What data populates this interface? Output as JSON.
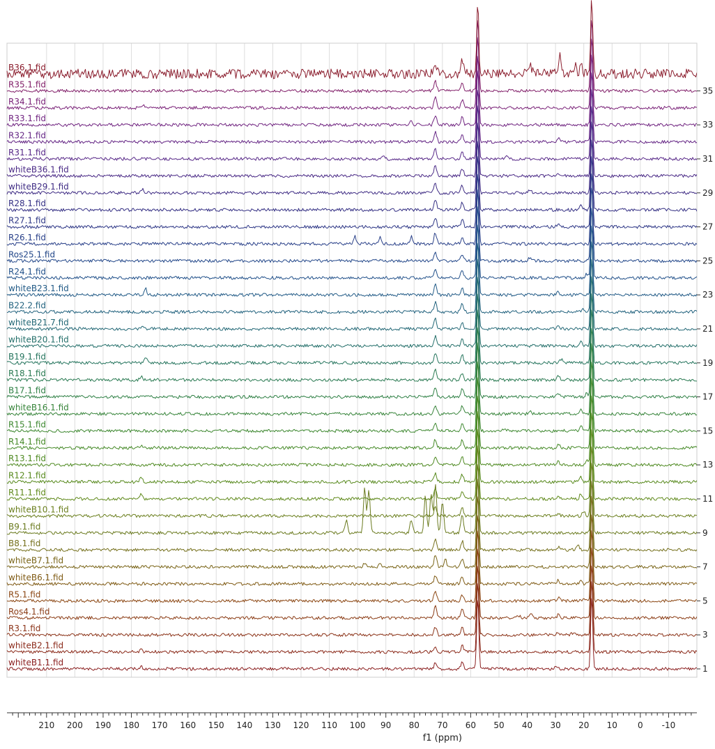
{
  "chart_data": {
    "type": "line",
    "subtype": "stacked-nmr-spectra",
    "title": "",
    "xlabel": "f1 (ppm)",
    "ylabel": "",
    "xlim": [
      224,
      -20
    ],
    "x_reversed": true,
    "x_ticks": [
      210,
      200,
      190,
      180,
      170,
      160,
      150,
      140,
      130,
      120,
      110,
      100,
      90,
      80,
      70,
      60,
      50,
      40,
      30,
      20,
      10,
      0,
      -10
    ],
    "x_tick_labels": [
      "210",
      "200",
      "190",
      "180",
      "170",
      "160",
      "150",
      "140",
      "130",
      "120",
      "110",
      "100",
      "90",
      "80",
      "70",
      "60",
      "50",
      "40",
      "30",
      "20",
      "10",
      "0",
      "-10"
    ],
    "y_ticks": [
      1,
      3,
      5,
      7,
      9,
      11,
      13,
      15,
      17,
      19,
      21,
      23,
      25,
      27,
      29,
      31,
      33,
      35
    ],
    "y_tick_labels": [
      "1",
      "3",
      "5",
      "7",
      "9",
      "11",
      "13",
      "15",
      "17",
      "19",
      "21",
      "23",
      "25",
      "27",
      "29",
      "31",
      "33",
      "35"
    ],
    "ylim": [
      0,
      36
    ],
    "grid": true,
    "series": [
      {
        "index": 1,
        "name": "whiteB1.1.fid",
        "color": "#8b2020",
        "peaks": [
          [
            72.5,
            0.9
          ],
          [
            63,
            1.2
          ],
          [
            57.5,
            12
          ],
          [
            17.2,
            12
          ],
          [
            176.5,
            0.3
          ],
          [
            30,
            0.3
          ]
        ]
      },
      {
        "index": 2,
        "name": "whiteB2.1.fid",
        "color": "#8b2a1a",
        "peaks": [
          [
            72.5,
            1.0
          ],
          [
            63,
            1.0
          ],
          [
            57.5,
            12
          ],
          [
            17.2,
            12
          ],
          [
            176.5,
            0.4
          ]
        ]
      },
      {
        "index": 3,
        "name": "R3.1.fid",
        "color": "#8b3318",
        "peaks": [
          [
            72.5,
            1.2
          ],
          [
            63,
            1.2
          ],
          [
            57.5,
            12
          ],
          [
            17.2,
            12
          ],
          [
            29,
            0.4
          ],
          [
            24,
            0.3
          ]
        ]
      },
      {
        "index": 4,
        "name": "Ros4.1.fid",
        "color": "#8b3c15",
        "peaks": [
          [
            72.5,
            2.0
          ],
          [
            63,
            1.5
          ],
          [
            57.5,
            12
          ],
          [
            17.2,
            12
          ],
          [
            38.8,
            0.6
          ],
          [
            43,
            0.4
          ],
          [
            29,
            0.5
          ]
        ]
      },
      {
        "index": 5,
        "name": "R5.1.fid",
        "color": "#8b4612",
        "peaks": [
          [
            72.5,
            1.6
          ],
          [
            63,
            1.0
          ],
          [
            57.5,
            12
          ],
          [
            17.2,
            12
          ],
          [
            29,
            0.6
          ],
          [
            20,
            0.5
          ]
        ]
      },
      {
        "index": 6,
        "name": "whiteB6.1.fid",
        "color": "#7f5a14",
        "peaks": [
          [
            72.5,
            1.4
          ],
          [
            63,
            1.2
          ],
          [
            57.5,
            12
          ],
          [
            17.2,
            12
          ],
          [
            29,
            0.6
          ],
          [
            21,
            0.5
          ]
        ]
      },
      {
        "index": 7,
        "name": "whiteB7.1.fid",
        "color": "#7a6518",
        "peaks": [
          [
            72.5,
            2.0
          ],
          [
            69,
            1.2
          ],
          [
            63,
            1.2
          ],
          [
            57.5,
            12
          ],
          [
            17.2,
            12
          ],
          [
            97.5,
            0.5
          ],
          [
            92,
            0.4
          ]
        ]
      },
      {
        "index": 8,
        "name": "B8.1.fid",
        "color": "#75701c",
        "peaks": [
          [
            72.5,
            1.8
          ],
          [
            63,
            1.4
          ],
          [
            57.5,
            12
          ],
          [
            17.2,
            12
          ],
          [
            29,
            0.5
          ],
          [
            22,
            0.6
          ]
        ]
      },
      {
        "index": 9,
        "name": "B9.1.fid",
        "color": "#6a7a1e",
        "peaks": [
          [
            97.5,
            7
          ],
          [
            96,
            7
          ],
          [
            104,
            2
          ],
          [
            81,
            2
          ],
          [
            76,
            6
          ],
          [
            74,
            6
          ],
          [
            72.5,
            8
          ],
          [
            70,
            5
          ],
          [
            63,
            3
          ],
          [
            57.5,
            12
          ],
          [
            17.2,
            12
          ]
        ]
      },
      {
        "index": 10,
        "name": "whiteB10.1.fid",
        "color": "#6b7f1e",
        "peaks": [
          [
            72.5,
            1.6
          ],
          [
            63,
            1.2
          ],
          [
            57.5,
            12
          ],
          [
            17.2,
            12
          ],
          [
            20,
            0.8
          ],
          [
            29,
            0.5
          ]
        ]
      },
      {
        "index": 11,
        "name": "R11.1.fid",
        "color": "#608a1c",
        "peaks": [
          [
            176.5,
            0.7
          ],
          [
            72.5,
            1.5
          ],
          [
            63,
            1.2
          ],
          [
            57.5,
            12
          ],
          [
            17.2,
            12
          ],
          [
            21,
            0.8
          ],
          [
            29,
            0.6
          ]
        ]
      },
      {
        "index": 12,
        "name": "R12.1.fid",
        "color": "#588a1e",
        "peaks": [
          [
            176.5,
            0.8
          ],
          [
            72.5,
            1.5
          ],
          [
            63,
            1.2
          ],
          [
            57.5,
            12
          ],
          [
            17.2,
            12
          ],
          [
            21,
            0.8
          ]
        ]
      },
      {
        "index": 13,
        "name": "R13.1.fid",
        "color": "#4f8a22",
        "peaks": [
          [
            72.5,
            1.4
          ],
          [
            63,
            1.2
          ],
          [
            57.5,
            12
          ],
          [
            17.2,
            12
          ],
          [
            29,
            0.6
          ],
          [
            19,
            0.7
          ]
        ]
      },
      {
        "index": 14,
        "name": "R14.1.fid",
        "color": "#468a28",
        "peaks": [
          [
            176.5,
            0.5
          ],
          [
            72.5,
            1.4
          ],
          [
            63,
            1.2
          ],
          [
            57.5,
            12
          ],
          [
            17.2,
            12
          ],
          [
            29,
            0.6
          ]
        ]
      },
      {
        "index": 15,
        "name": "R15.1.fid",
        "color": "#3e8830",
        "peaks": [
          [
            72.5,
            1.4
          ],
          [
            63,
            1.2
          ],
          [
            57.5,
            12
          ],
          [
            17.2,
            12
          ],
          [
            21,
            0.7
          ],
          [
            48,
            0.4
          ]
        ]
      },
      {
        "index": 16,
        "name": "whiteB16.1.fid",
        "color": "#37843a",
        "peaks": [
          [
            72.5,
            1.5
          ],
          [
            63,
            1.2
          ],
          [
            57.5,
            12
          ],
          [
            17.2,
            12
          ],
          [
            39,
            0.4
          ],
          [
            21,
            0.6
          ]
        ]
      },
      {
        "index": 17,
        "name": "B17.1.fid",
        "color": "#2f8045",
        "peaks": [
          [
            72.5,
            1.6
          ],
          [
            63,
            1.3
          ],
          [
            57.5,
            12
          ],
          [
            17.2,
            12
          ],
          [
            29,
            0.6
          ],
          [
            19,
            0.6
          ]
        ]
      },
      {
        "index": 18,
        "name": "R18.1.fid",
        "color": "#2a7a52",
        "peaks": [
          [
            176.5,
            0.6
          ],
          [
            72.5,
            1.6
          ],
          [
            63,
            1.2
          ],
          [
            57.5,
            12
          ],
          [
            17.2,
            12
          ],
          [
            29,
            0.8
          ]
        ]
      },
      {
        "index": 19,
        "name": "B19.1.fid",
        "color": "#26755e",
        "peaks": [
          [
            175,
            0.9
          ],
          [
            72.5,
            1.6
          ],
          [
            63,
            1.2
          ],
          [
            57.5,
            12
          ],
          [
            17.2,
            12
          ],
          [
            28,
            0.6
          ]
        ]
      },
      {
        "index": 20,
        "name": "whiteB20.1.fid",
        "color": "#246f6a",
        "peaks": [
          [
            72.5,
            1.6
          ],
          [
            63,
            1.2
          ],
          [
            57.5,
            12
          ],
          [
            17.2,
            12
          ],
          [
            21,
            0.6
          ]
        ]
      },
      {
        "index": 21,
        "name": "whiteB21.7.fid",
        "color": "#236876",
        "peaks": [
          [
            176,
            0.6
          ],
          [
            72.5,
            1.6
          ],
          [
            63,
            1.2
          ],
          [
            57.5,
            12
          ],
          [
            17.2,
            12
          ],
          [
            29,
            0.5
          ]
        ]
      },
      {
        "index": 22,
        "name": "B22.2.fid",
        "color": "#22627e",
        "peaks": [
          [
            72.5,
            1.6
          ],
          [
            63,
            1.2
          ],
          [
            57.5,
            12
          ],
          [
            17.2,
            12
          ],
          [
            20,
            0.5
          ]
        ]
      },
      {
        "index": 23,
        "name": "whiteB23.1.fid",
        "color": "#215a86",
        "peaks": [
          [
            175,
            1.0
          ],
          [
            72.5,
            1.6
          ],
          [
            63,
            1.2
          ],
          [
            57.5,
            12
          ],
          [
            17.2,
            12
          ],
          [
            29,
            0.5
          ]
        ]
      },
      {
        "index": 24,
        "name": "R24.1.fid",
        "color": "#22518a",
        "peaks": [
          [
            72.5,
            1.6
          ],
          [
            63,
            1.2
          ],
          [
            57.5,
            12
          ],
          [
            17.2,
            12
          ],
          [
            19,
            0.7
          ]
        ]
      },
      {
        "index": 25,
        "name": "Ros25.1.fid",
        "color": "#24488a",
        "peaks": [
          [
            72.5,
            1.6
          ],
          [
            63,
            1.2
          ],
          [
            57.5,
            12
          ],
          [
            17.2,
            12
          ],
          [
            39,
            0.6
          ],
          [
            17,
            0.8
          ]
        ]
      },
      {
        "index": 26,
        "name": "R26.1.fid",
        "color": "#283f88",
        "peaks": [
          [
            101,
            1.2
          ],
          [
            92,
            1.0
          ],
          [
            81,
            1.2
          ],
          [
            72.5,
            1.8
          ],
          [
            63,
            1.2
          ],
          [
            57.5,
            12
          ],
          [
            17.2,
            12
          ]
        ]
      },
      {
        "index": 27,
        "name": "R27.1.fid",
        "color": "#2e3786",
        "peaks": [
          [
            72.5,
            1.6
          ],
          [
            63,
            1.2
          ],
          [
            57.5,
            12
          ],
          [
            17.2,
            12
          ],
          [
            29,
            0.6
          ]
        ]
      },
      {
        "index": 28,
        "name": "R28.1.fid",
        "color": "#353084",
        "peaks": [
          [
            72.5,
            1.6
          ],
          [
            63,
            1.2
          ],
          [
            57.5,
            12
          ],
          [
            17.2,
            12
          ],
          [
            21,
            0.6
          ]
        ]
      },
      {
        "index": 29,
        "name": "whiteB29.1.fid",
        "color": "#3f2c84",
        "peaks": [
          [
            176,
            0.5
          ],
          [
            72.5,
            1.6
          ],
          [
            63,
            1.2
          ],
          [
            57.5,
            12
          ],
          [
            17.2,
            12
          ],
          [
            39,
            0.6
          ]
        ]
      },
      {
        "index": 30,
        "name": "whiteB36.1.fid",
        "color": "#4a2a86",
        "peaks": [
          [
            72.5,
            1.6
          ],
          [
            63,
            1.2
          ],
          [
            57.5,
            12
          ],
          [
            17.2,
            12
          ],
          [
            29,
            0.5
          ]
        ]
      },
      {
        "index": 31,
        "name": "R31.1.fid",
        "color": "#572888",
        "peaks": [
          [
            91,
            0.7
          ],
          [
            72.5,
            1.6
          ],
          [
            63,
            1.2
          ],
          [
            57.5,
            12
          ],
          [
            17.2,
            12
          ],
          [
            47,
            0.6
          ]
        ]
      },
      {
        "index": 32,
        "name": "R32.1.fid",
        "color": "#652685",
        "peaks": [
          [
            72.5,
            1.6
          ],
          [
            63,
            1.2
          ],
          [
            57.5,
            12
          ],
          [
            17.2,
            12
          ],
          [
            29,
            0.6
          ]
        ]
      },
      {
        "index": 33,
        "name": "R33.1.fid",
        "color": "#702480",
        "peaks": [
          [
            81,
            0.8
          ],
          [
            72.5,
            1.6
          ],
          [
            63,
            1.2
          ],
          [
            57.5,
            12
          ],
          [
            17.2,
            12
          ]
        ]
      },
      {
        "index": 34,
        "name": "R34.1.fid",
        "color": "#7a2278",
        "peaks": [
          [
            176,
            0.5
          ],
          [
            72.5,
            1.6
          ],
          [
            63,
            1.2
          ],
          [
            57.5,
            12
          ],
          [
            17.2,
            12
          ]
        ]
      },
      {
        "index": 35,
        "name": "R35.1.fid",
        "color": "#82206a",
        "peaks": [
          [
            72.5,
            1.6
          ],
          [
            63,
            1.2
          ],
          [
            57.5,
            12
          ],
          [
            17.2,
            12
          ]
        ]
      },
      {
        "index": 36,
        "name": "B36.1.fid",
        "color": "#8a1c2c",
        "peaks": [
          [
            72.5,
            2
          ],
          [
            63,
            2
          ],
          [
            57.5,
            12
          ],
          [
            17.2,
            12
          ],
          [
            28.5,
            3
          ],
          [
            23,
            1.5
          ],
          [
            38.8,
            1
          ],
          [
            21,
            1.5
          ]
        ]
      }
    ]
  }
}
